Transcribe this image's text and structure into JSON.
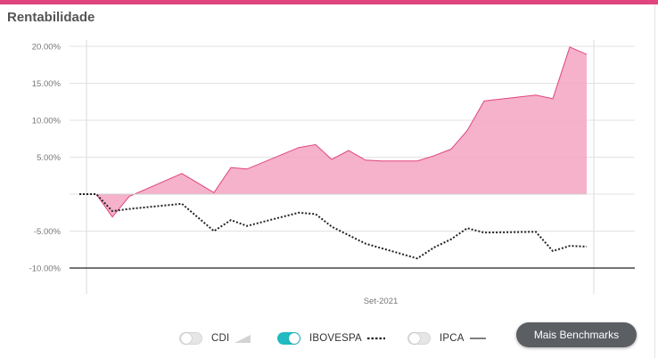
{
  "panel": {
    "title": "Rentabilidade"
  },
  "chart_data": {
    "type": "area",
    "title": "Rentabilidade",
    "xlabel": "",
    "ylabel": "",
    "ylim": [
      -10,
      20
    ],
    "y_ticks": [
      20,
      15,
      10,
      5,
      0,
      -5,
      -10
    ],
    "y_tick_labels": [
      "20.00%",
      "15.00%",
      "10.00%",
      "5.00%",
      "",
      "-5.00%",
      "-10.00%"
    ],
    "x_tick_labels": [
      "Set-2021"
    ],
    "grid": true,
    "legend": "bottom",
    "series": [
      {
        "name": "CDI",
        "style": "area",
        "color": "#f4a3c2",
        "stroke": "#e0457f",
        "values": [
          0,
          0,
          -3.1,
          -0.3,
          2.8,
          0.2,
          3.6,
          3.4,
          6.3,
          6.7,
          4.7,
          5.9,
          4.6,
          4.5,
          4.5,
          5.2,
          6.1,
          8.6,
          12.6,
          13.4,
          12.9,
          19.9,
          18.9
        ]
      },
      {
        "name": "IBOVESPA",
        "style": "dotted",
        "color": "#222222",
        "values": [
          0,
          0,
          -2.3,
          -2.0,
          -1.3,
          -5.0,
          -3.5,
          -4.3,
          -2.5,
          -2.7,
          -4.4,
          -6.7,
          -8.7,
          -7.2,
          -6.1,
          -4.6,
          -5.2,
          -5.1,
          -7.7,
          -7.0,
          -7.1
        ]
      },
      {
        "name": "IPCA",
        "style": "line",
        "color": "#333333",
        "values": []
      }
    ]
  },
  "legend_items": [
    {
      "name": "CDI",
      "label": "CDI",
      "on": false
    },
    {
      "name": "IBOVESPA",
      "label": "IBOVESPA",
      "on": true
    },
    {
      "name": "IPCA",
      "label": "IPCA",
      "on": false
    }
  ],
  "buttons": {
    "more_benchmarks": "Mais Benchmarks"
  },
  "colors": {
    "accent": "#e0457f",
    "toggle_on": "#1fbac2",
    "button_bg": "#5b5f63"
  }
}
